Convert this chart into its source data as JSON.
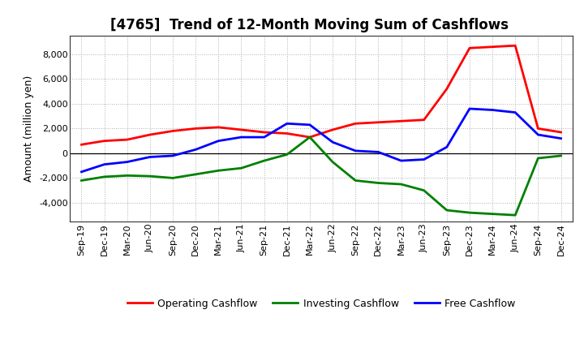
{
  "title": "[4765]  Trend of 12-Month Moving Sum of Cashflows",
  "ylabel": "Amount (million yen)",
  "x_labels": [
    "Sep-19",
    "Dec-19",
    "Mar-20",
    "Jun-20",
    "Sep-20",
    "Dec-20",
    "Mar-21",
    "Jun-21",
    "Sep-21",
    "Dec-21",
    "Mar-22",
    "Jun-22",
    "Sep-22",
    "Dec-22",
    "Mar-23",
    "Jun-23",
    "Sep-23",
    "Dec-23",
    "Mar-24",
    "Jun-24",
    "Sep-24",
    "Dec-24"
  ],
  "operating": [
    700,
    1000,
    1100,
    1500,
    1800,
    2000,
    2100,
    1900,
    1700,
    1600,
    1300,
    1900,
    2400,
    2500,
    2600,
    2700,
    5200,
    8500,
    8600,
    8700,
    2000,
    1700
  ],
  "investing": [
    -2200,
    -1900,
    -1800,
    -1850,
    -2000,
    -1700,
    -1400,
    -1200,
    -600,
    -100,
    1300,
    -700,
    -2200,
    -2400,
    -2500,
    -3000,
    -4600,
    -4800,
    -4900,
    -5000,
    -400,
    -200
  ],
  "free": [
    -1500,
    -900,
    -700,
    -300,
    -200,
    300,
    1000,
    1300,
    1300,
    2400,
    2300,
    900,
    200,
    100,
    -600,
    -500,
    500,
    3600,
    3500,
    3300,
    1500,
    1200
  ],
  "operating_color": "#ff0000",
  "investing_color": "#008000",
  "free_color": "#0000ff",
  "ylim": [
    -5500,
    9500
  ],
  "yticks": [
    -4000,
    -2000,
    0,
    2000,
    4000,
    6000,
    8000
  ],
  "background_color": "#ffffff",
  "grid_color": "#b0b0b0",
  "title_fontsize": 12,
  "label_fontsize": 9,
  "tick_fontsize": 8,
  "legend_fontsize": 9,
  "line_width": 2.0
}
